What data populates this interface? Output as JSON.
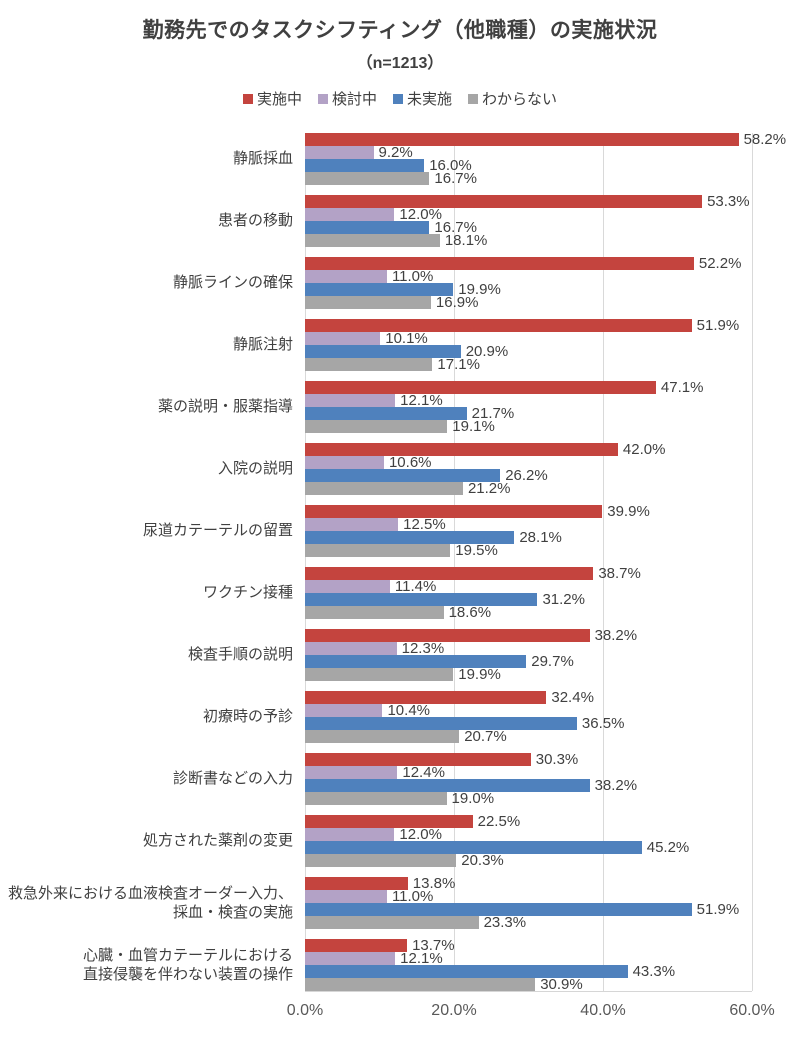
{
  "chart_data": {
    "type": "bar",
    "orientation": "horizontal",
    "title": "勤務先でのタスクシフティング（他職種）の実施状況",
    "subtitle": "（n=1213）",
    "legend_position": "top",
    "grid": true,
    "xlim": [
      0,
      60
    ],
    "value_suffix": "%",
    "x_ticks": [
      {
        "label": "0.0%",
        "value": 0
      },
      {
        "label": "20.0%",
        "value": 20
      },
      {
        "label": "40.0%",
        "value": 40
      },
      {
        "label": "60.0%",
        "value": 60
      }
    ],
    "categories": [
      [
        "静脈採血"
      ],
      [
        "患者の移動"
      ],
      [
        "静脈ラインの確保"
      ],
      [
        "静脈注射"
      ],
      [
        "薬の説明・服薬指導"
      ],
      [
        "入院の説明"
      ],
      [
        "尿道カテーテルの留置"
      ],
      [
        "ワクチン接種"
      ],
      [
        "検査手順の説明"
      ],
      [
        "初療時の予診"
      ],
      [
        "診断書などの入力"
      ],
      [
        "処方された薬剤の変更"
      ],
      [
        "救急外来における血液検査オーダー入力、",
        "採血・検査の実施"
      ],
      [
        "心臓・血管カテーテルにおける",
        "直接侵襲を伴わない装置の操作"
      ]
    ],
    "series": [
      {
        "name": "実施中",
        "color": "#c4443e",
        "values": [
          58.2,
          53.3,
          52.2,
          51.9,
          47.1,
          42.0,
          39.9,
          38.7,
          38.2,
          32.4,
          30.3,
          22.5,
          13.8,
          13.7
        ]
      },
      {
        "name": "検討中",
        "color": "#b3a2c6",
        "values": [
          9.2,
          12.0,
          11.0,
          10.1,
          12.1,
          10.6,
          12.5,
          11.4,
          12.3,
          10.4,
          12.4,
          12.0,
          11.0,
          12.1
        ]
      },
      {
        "name": "未実施",
        "color": "#4f81bd",
        "values": [
          16.0,
          16.7,
          19.9,
          20.9,
          21.7,
          26.2,
          28.1,
          31.2,
          29.7,
          36.5,
          38.2,
          45.2,
          51.9,
          43.3
        ]
      },
      {
        "name": "わからない",
        "color": "#a6a6a6",
        "values": [
          16.7,
          18.1,
          16.9,
          17.1,
          19.1,
          21.2,
          19.5,
          18.6,
          19.9,
          20.7,
          19.0,
          20.3,
          23.3,
          30.9
        ]
      }
    ]
  }
}
